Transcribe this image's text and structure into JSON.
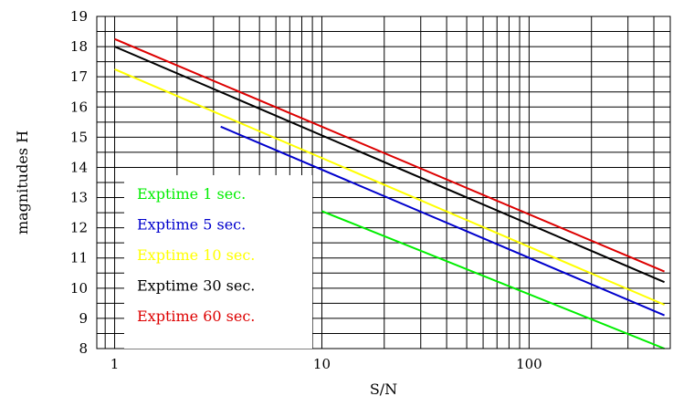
{
  "chart_data": {
    "type": "line",
    "xlabel": "S/N",
    "ylabel": "magnitudes H",
    "xscale": "log",
    "xlim": [
      0.82,
      480
    ],
    "ylim": [
      8,
      19
    ],
    "x_tick_labels": [
      {
        "value": 1,
        "label": "1"
      },
      {
        "value": 10,
        "label": "10"
      },
      {
        "value": 100,
        "label": "100"
      }
    ],
    "y_tick_labels": [
      "8",
      "9",
      "10",
      "11",
      "12",
      "13",
      "14",
      "15",
      "16",
      "17",
      "18",
      "19"
    ],
    "grid": true,
    "legend_position": "bottom-left",
    "series": [
      {
        "name": "Exptime 1 sec.",
        "color": "#00ee00",
        "x": [
          10,
          450
        ],
        "y": [
          12.55,
          8.0
        ]
      },
      {
        "name": "Exptime 5 sec.",
        "color": "#0000cc",
        "x": [
          3.25,
          450
        ],
        "y": [
          15.35,
          9.1
        ]
      },
      {
        "name": "Exptime 10 sec.",
        "color": "#ffff00",
        "x": [
          1,
          450
        ],
        "y": [
          17.25,
          9.45
        ]
      },
      {
        "name": "Exptime 30 sec.",
        "color": "#000000",
        "x": [
          1,
          450
        ],
        "y": [
          18.0,
          10.2
        ]
      },
      {
        "name": "Exptime 60 sec.",
        "color": "#dd0000",
        "x": [
          1,
          450
        ],
        "y": [
          18.25,
          10.55
        ]
      }
    ]
  }
}
